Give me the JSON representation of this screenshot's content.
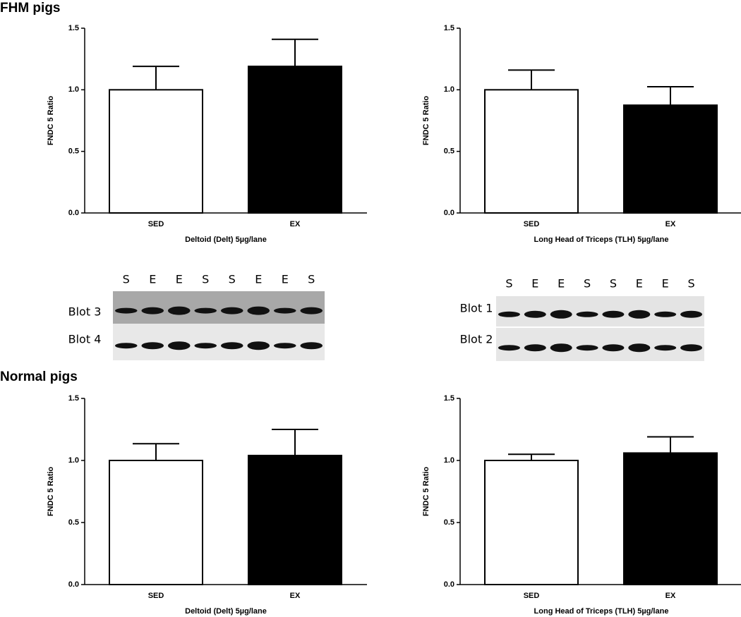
{
  "sections": [
    "FHM pigs",
    "Normal pigs"
  ],
  "blots": [
    {
      "lanes": [
        "S",
        "E",
        "E",
        "S",
        "S",
        "E",
        "E",
        "S"
      ],
      "rows": [
        "Blot 3",
        "Blot 4"
      ]
    },
    {
      "lanes": [
        "S",
        "E",
        "E",
        "S",
        "S",
        "E",
        "E",
        "S"
      ],
      "rows": [
        "Blot 1",
        "Blot 2"
      ]
    }
  ],
  "chart_data": [
    {
      "type": "bar",
      "ylabel": "FNDC 5 Ratio",
      "xlabel": "Deltoid (Delt) 5µg/lane",
      "categories": [
        "SED",
        "EX"
      ],
      "values": [
        1.0,
        1.19
      ],
      "errors": [
        0.19,
        0.22
      ],
      "colors": [
        "#ffffff",
        "#000000"
      ],
      "ylim": [
        0,
        1.5
      ],
      "yticks": [
        {
          "value": 0,
          "label": "0.0"
        },
        0.5,
        {
          "value": 1,
          "label": "1.0"
        },
        1.5
      ]
    },
    {
      "type": "bar",
      "ylabel": "FNDC 5 Ratio",
      "xlabel": "Long Head of Triceps (TLH) 5µg/lane",
      "categories": [
        "SED",
        "EX"
      ],
      "values": [
        1.0,
        0.875
      ],
      "errors": [
        0.16,
        0.15
      ],
      "colors": [
        "#ffffff",
        "#000000"
      ],
      "ylim": [
        0,
        1.5
      ],
      "yticks": [
        {
          "value": 0,
          "label": "0.0"
        },
        0.5,
        {
          "value": 1,
          "label": "1.0"
        },
        1.5
      ]
    },
    {
      "type": "bar",
      "ylabel": "FNDC 5 Ratio",
      "xlabel": "Deltoid (Delt) 5µg/lane",
      "categories": [
        "SED",
        "EX"
      ],
      "values": [
        1.0,
        1.04
      ],
      "errors": [
        0.135,
        0.21
      ],
      "colors": [
        "#ffffff",
        "#000000"
      ],
      "ylim": [
        0,
        1.5
      ],
      "yticks": [
        {
          "value": 0,
          "label": "0.0"
        },
        0.5,
        {
          "value": 1,
          "label": "1.0"
        },
        1.5
      ]
    },
    {
      "type": "bar",
      "ylabel": "FNDC 5 Ratio",
      "xlabel": "Long Head of Triceps (TLH) 5µg/lane",
      "categories": [
        "SED",
        "EX"
      ],
      "values": [
        1.0,
        1.06
      ],
      "errors": [
        0.05,
        0.13
      ],
      "colors": [
        "#ffffff",
        "#000000"
      ],
      "ylim": [
        0,
        1.5
      ],
      "yticks": [
        {
          "value": 0,
          "label": "0.0"
        },
        0.5,
        {
          "value": 1,
          "label": "1.0"
        },
        1.5
      ]
    }
  ]
}
